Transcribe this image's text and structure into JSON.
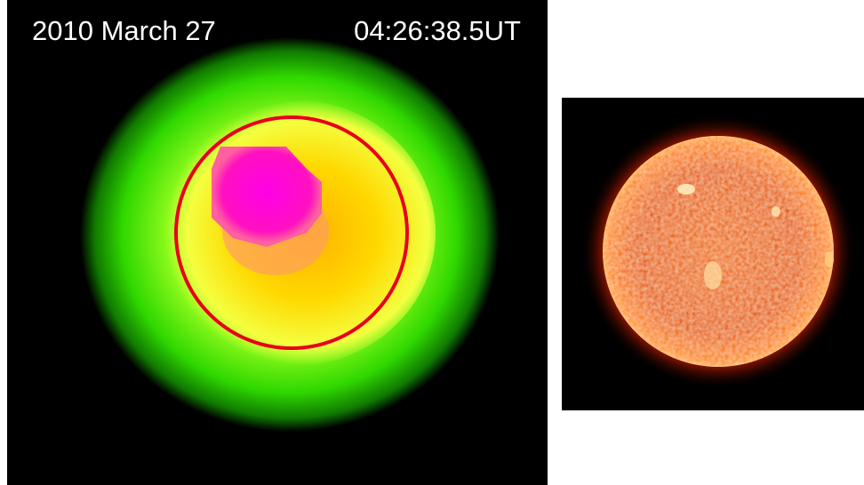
{
  "left_panel": {
    "date": "2010 March 27",
    "time": "04:26:38.5UT"
  }
}
